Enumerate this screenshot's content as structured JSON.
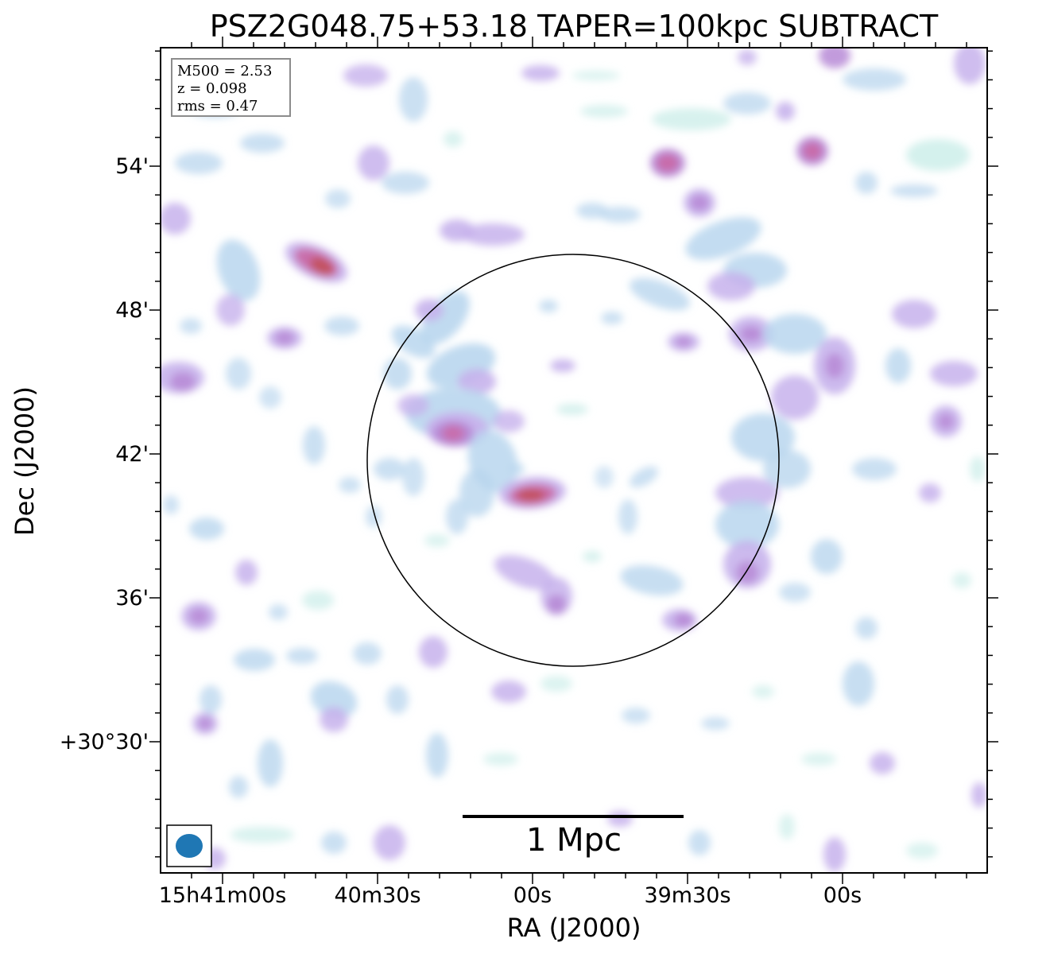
{
  "figure": {
    "title": "PSZ2G048.75+53.18 TAPER=100kpc SUBTRACT",
    "xlabel": "RA (J2000)",
    "ylabel": "Dec (J2000)",
    "x_ticks": [
      "15h41m00s",
      "40m30s",
      "00s",
      "39m30s",
      "00s"
    ],
    "y_ticks": [
      "54'",
      "48'",
      "42'",
      "36'",
      "+30°30'"
    ],
    "info": {
      "mass": "M500 = 2.53",
      "redshift": "z = 0.098",
      "rms": "rms = 0.47"
    },
    "scalebar_label": "1 Mpc",
    "colors": {
      "faint": "#cdeeea",
      "light_blue": "#b9d6ee",
      "lavender": "#c7b2ec",
      "purple": "#b78ad6",
      "magenta": "#c96aa8",
      "red": "#c24f5a",
      "beam": "#1f77b4",
      "circle": "#000000"
    }
  }
}
